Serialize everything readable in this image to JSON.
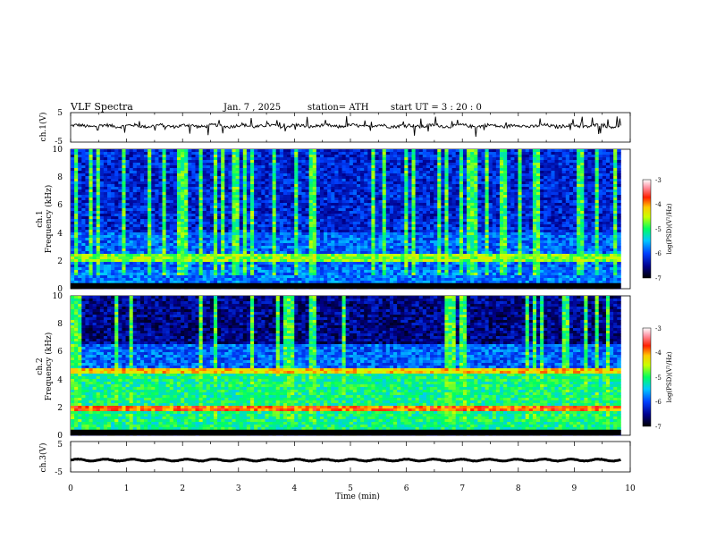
{
  "header": {
    "title": "VLF  Spectra",
    "date": "Jan.  7  , 2025",
    "station": "station= ATH",
    "start_ut": "start  UT  =    3  : 20 : 0"
  },
  "chart_data": [
    {
      "type": "line",
      "name": "ch1-waveform",
      "ylabel": "ch.1(V)",
      "ylim": [
        -5,
        5
      ],
      "yticks": [
        "5",
        "-5"
      ],
      "xlim": [
        0,
        10
      ],
      "data_x_max": 9.83,
      "baseline": 0.5,
      "color": "#000000"
    },
    {
      "type": "heatmap",
      "name": "ch1-spectrogram",
      "ylabel_channel": "ch.1",
      "ylabel": "Frequency  (kHz)",
      "ylim": [
        0,
        10
      ],
      "yticks": [
        "0",
        "2",
        "4",
        "6",
        "8",
        "10"
      ],
      "xlim": [
        0,
        10
      ],
      "data_x_max": 9.83,
      "colorbar": {
        "label": "log(PSD)(V²/Hz)",
        "range": [
          -7,
          -3
        ],
        "ticks": [
          "-3",
          "-4",
          "-5",
          "-6",
          "-7"
        ]
      }
    },
    {
      "type": "heatmap",
      "name": "ch2-spectrogram",
      "ylabel_channel": "ch.2",
      "ylabel": "Frequency  (kHz)",
      "ylim": [
        0,
        10
      ],
      "yticks": [
        "0",
        "2",
        "4",
        "6",
        "8",
        "10"
      ],
      "xlim": [
        0,
        10
      ],
      "data_x_max": 9.83,
      "colorbar": {
        "label": "log(PSD)(V²/Hz)",
        "range": [
          -7,
          -3
        ],
        "ticks": [
          "-3",
          "-4",
          "-5",
          "-6",
          "-7"
        ]
      }
    },
    {
      "type": "line",
      "name": "ch3-waveform",
      "ylabel": "ch.3(V)",
      "ylim": [
        -5,
        5
      ],
      "yticks": [
        "5",
        "-5"
      ],
      "xlim": [
        0,
        10
      ],
      "data_x_max": 9.83,
      "baseline": -1.1,
      "color": "#000000"
    }
  ],
  "xaxis": {
    "label": "Time  (min)",
    "ticks": [
      "0",
      "1",
      "2",
      "3",
      "4",
      "5",
      "6",
      "7",
      "8",
      "9",
      "10"
    ]
  }
}
